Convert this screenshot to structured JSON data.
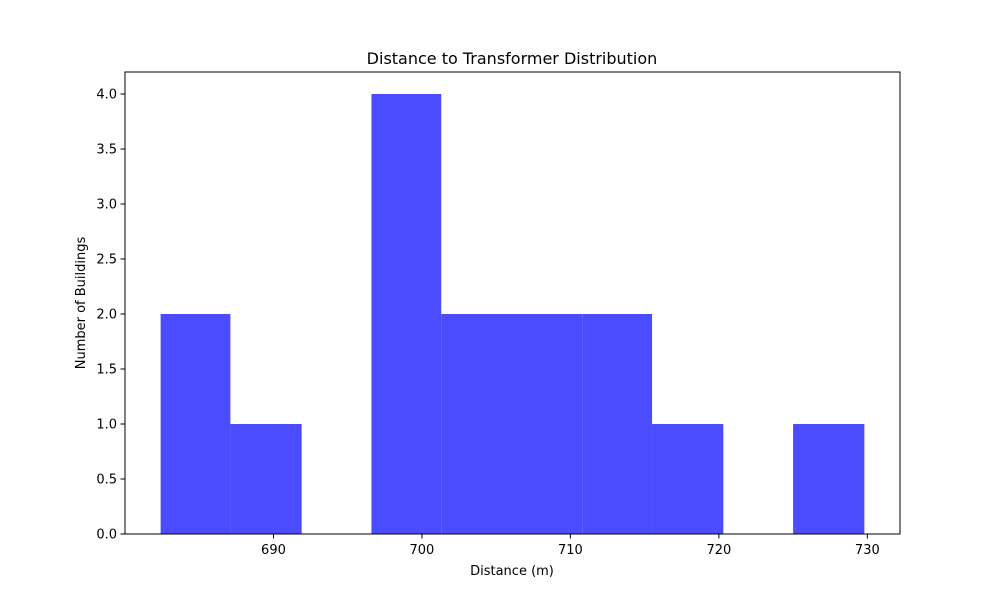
{
  "chart_data": {
    "type": "bar",
    "title": "Distance to Transformer Distribution",
    "xlabel": "Distance (m)",
    "ylabel": "Number of Buildings",
    "bin_edges": [
      682.4,
      687.1,
      691.9,
      696.6,
      701.3,
      706.1,
      710.8,
      715.5,
      720.3,
      725.0,
      729.8
    ],
    "counts": [
      2,
      1,
      0,
      4,
      2,
      2,
      2,
      1,
      0,
      1
    ],
    "xlim": [
      680.0,
      732.2
    ],
    "ylim": [
      0,
      4.2
    ],
    "xticks": [
      690,
      700,
      710,
      720,
      730
    ],
    "xtick_labels": [
      "690",
      "700",
      "710",
      "720",
      "730"
    ],
    "yticks": [
      0,
      0.5,
      1.0,
      1.5,
      2.0,
      2.5,
      3.0,
      3.5,
      4.0
    ],
    "ytick_labels": [
      "0.0",
      "0.5",
      "1.0",
      "1.5",
      "2.0",
      "2.5",
      "3.0",
      "3.5",
      "4.0"
    ],
    "bar_color": "#4b4bff",
    "grid": false
  }
}
